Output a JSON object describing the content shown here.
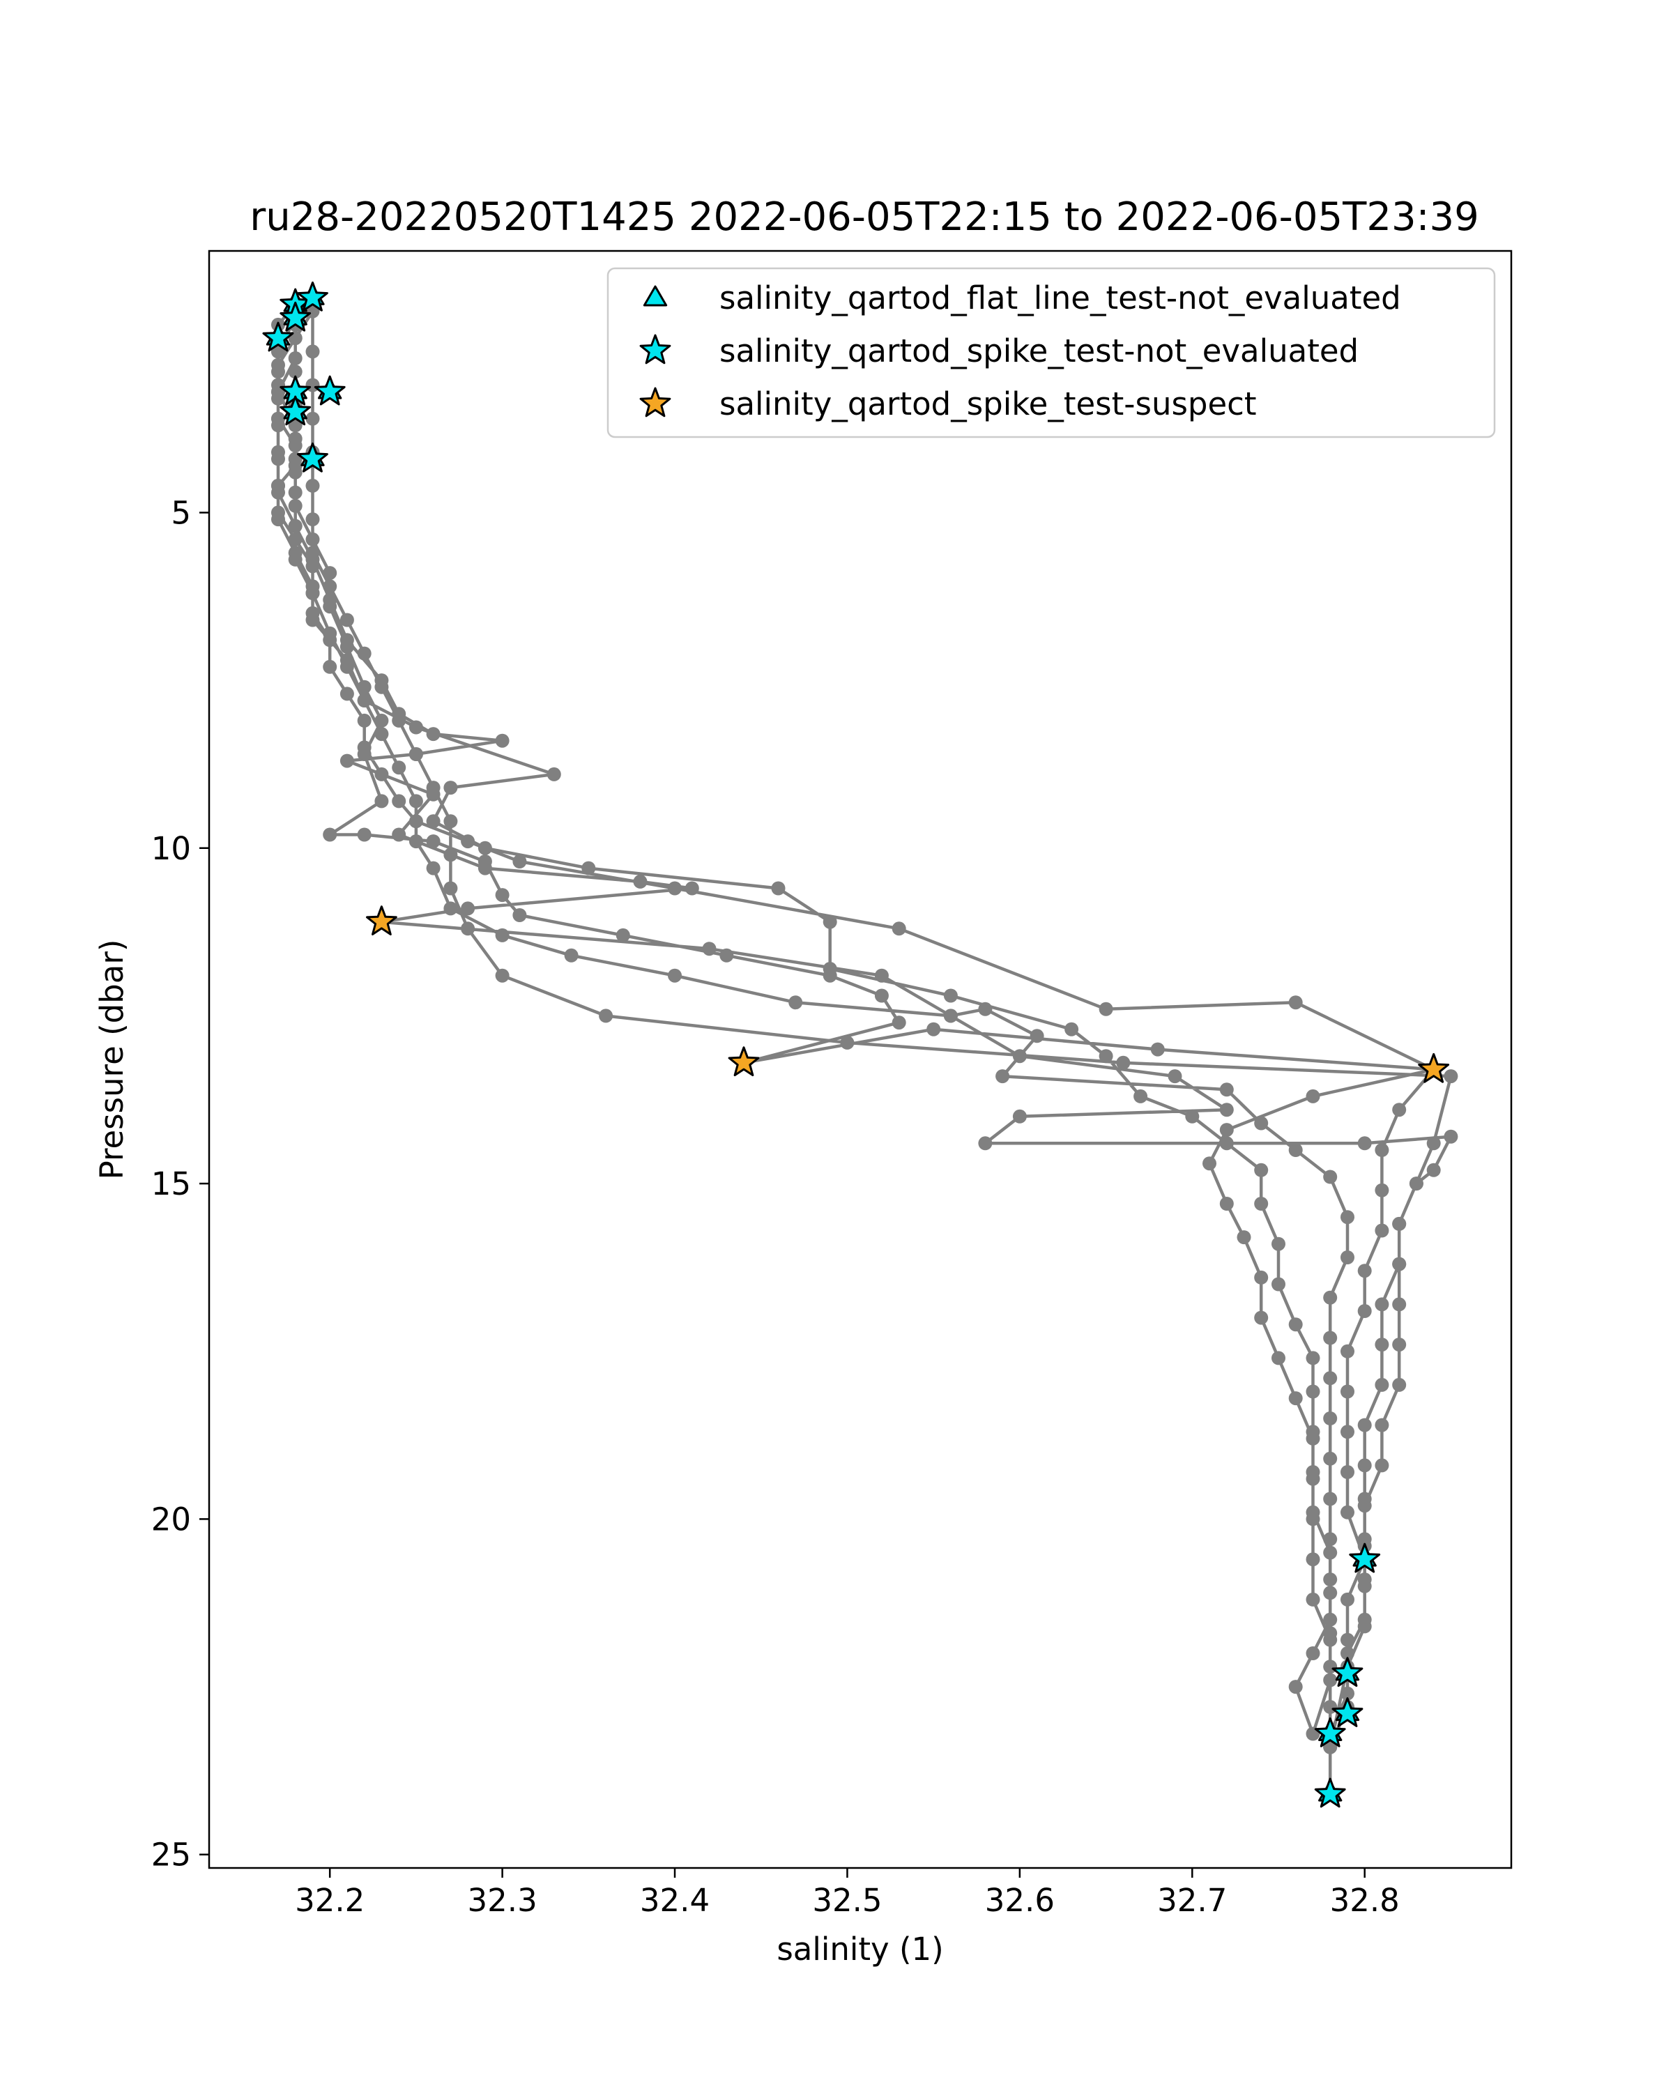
{
  "chart_data": {
    "type": "scatter",
    "title": "ru28-20220520T1425 2022-06-05T22:15 to 2022-06-05T23:39",
    "xlabel": "salinity (1)",
    "ylabel": "Pressure (dbar)",
    "xlim": [
      32.13,
      32.885
    ],
    "ylim": [
      25.2,
      1.1
    ],
    "y_inverted": true,
    "x_ticks": [
      32.2,
      32.3,
      32.4,
      32.5,
      32.6,
      32.7,
      32.8
    ],
    "x_tick_labels": [
      "32.2",
      "32.3",
      "32.4",
      "32.5",
      "32.6",
      "32.7",
      "32.8"
    ],
    "y_ticks": [
      5,
      10,
      15,
      20,
      25
    ],
    "y_tick_labels": [
      "5",
      "10",
      "15",
      "20",
      "25"
    ],
    "grid": false,
    "legend_position": "upper-right",
    "colors": {
      "profile": "#808080",
      "not_evaluated": "#00e5ee",
      "suspect": "#f5a623",
      "edge": "#000000"
    },
    "profile_series": {
      "style": "line-with-markers",
      "points": [
        [
          32.18,
          1.9
        ],
        [
          32.17,
          2.2
        ],
        [
          32.17,
          2.6
        ],
        [
          32.17,
          2.9
        ],
        [
          32.17,
          3.3
        ],
        [
          32.17,
          3.6
        ],
        [
          32.18,
          4.0
        ],
        [
          32.18,
          4.3
        ],
        [
          32.17,
          4.6
        ],
        [
          32.17,
          5.0
        ],
        [
          32.18,
          5.4
        ],
        [
          32.19,
          5.8
        ],
        [
          32.19,
          6.2
        ],
        [
          32.19,
          6.5
        ],
        [
          32.2,
          6.9
        ],
        [
          32.2,
          7.3
        ],
        [
          32.21,
          7.7
        ],
        [
          32.22,
          8.1
        ],
        [
          32.22,
          8.5
        ],
        [
          32.23,
          8.9
        ],
        [
          32.24,
          9.3
        ],
        [
          32.25,
          9.6
        ],
        [
          32.28,
          9.9
        ],
        [
          32.31,
          10.2
        ],
        [
          32.4,
          10.6
        ],
        [
          32.53,
          11.2
        ],
        [
          32.65,
          12.4
        ],
        [
          32.76,
          12.3
        ],
        [
          32.84,
          13.3
        ],
        [
          32.82,
          13.9
        ],
        [
          32.81,
          14.5
        ],
        [
          32.81,
          15.1
        ],
        [
          32.81,
          15.7
        ],
        [
          32.8,
          16.3
        ],
        [
          32.8,
          16.9
        ],
        [
          32.79,
          17.5
        ],
        [
          32.79,
          18.1
        ],
        [
          32.79,
          18.7
        ],
        [
          32.79,
          19.3
        ],
        [
          32.79,
          19.9
        ],
        [
          32.8,
          20.6
        ],
        [
          32.79,
          21.2
        ],
        [
          32.79,
          21.8
        ],
        [
          32.79,
          22.3
        ],
        [
          32.79,
          22.8
        ],
        [
          32.78,
          23.4
        ],
        [
          32.78,
          24.1
        ],
        [
          32.78,
          23.2
        ],
        [
          32.79,
          22.6
        ],
        [
          32.79,
          22.0
        ],
        [
          32.8,
          21.5
        ],
        [
          32.8,
          20.9
        ],
        [
          32.8,
          20.3
        ],
        [
          32.8,
          19.7
        ],
        [
          32.8,
          19.2
        ],
        [
          32.8,
          18.6
        ],
        [
          32.81,
          18.0
        ],
        [
          32.81,
          17.4
        ],
        [
          32.81,
          16.8
        ],
        [
          32.82,
          16.2
        ],
        [
          32.82,
          15.6
        ],
        [
          32.83,
          15.0
        ],
        [
          32.84,
          14.4
        ],
        [
          32.85,
          13.4
        ],
        [
          32.66,
          13.2
        ],
        [
          32.5,
          12.9
        ],
        [
          32.36,
          12.5
        ],
        [
          32.3,
          11.9
        ],
        [
          32.28,
          11.2
        ],
        [
          32.27,
          10.6
        ],
        [
          32.27,
          10.1
        ],
        [
          32.27,
          9.6
        ],
        [
          32.26,
          9.1
        ],
        [
          32.25,
          8.6
        ],
        [
          32.24,
          8.1
        ],
        [
          32.23,
          7.6
        ],
        [
          32.22,
          7.1
        ],
        [
          32.21,
          6.6
        ],
        [
          32.2,
          6.1
        ],
        [
          32.19,
          5.6
        ],
        [
          32.19,
          5.1
        ],
        [
          32.19,
          4.6
        ],
        [
          32.19,
          4.1
        ],
        [
          32.19,
          3.6
        ],
        [
          32.19,
          3.1
        ],
        [
          32.19,
          2.6
        ],
        [
          32.19,
          2.0
        ],
        [
          32.18,
          2.4
        ],
        [
          32.17,
          2.8
        ],
        [
          32.17,
          3.2
        ],
        [
          32.18,
          3.7
        ],
        [
          32.18,
          4.2
        ],
        [
          32.18,
          4.7
        ],
        [
          32.18,
          5.2
        ],
        [
          32.19,
          5.7
        ],
        [
          32.2,
          6.3
        ],
        [
          32.21,
          6.9
        ],
        [
          32.23,
          7.5
        ],
        [
          32.24,
          8.0
        ],
        [
          32.26,
          8.3
        ],
        [
          32.3,
          8.4
        ],
        [
          32.25,
          8.6
        ],
        [
          32.21,
          8.7
        ],
        [
          32.26,
          9.2
        ],
        [
          32.24,
          9.8
        ],
        [
          32.29,
          10.3
        ],
        [
          32.38,
          10.5
        ],
        [
          32.41,
          10.6
        ],
        [
          32.28,
          10.9
        ],
        [
          32.23,
          11.1
        ],
        [
          32.42,
          11.5
        ],
        [
          32.52,
          11.9
        ],
        [
          32.56,
          12.5
        ],
        [
          32.58,
          12.4
        ],
        [
          32.61,
          12.8
        ],
        [
          32.59,
          13.4
        ],
        [
          32.72,
          13.6
        ],
        [
          32.74,
          14.1
        ],
        [
          32.76,
          14.5
        ],
        [
          32.78,
          14.9
        ],
        [
          32.79,
          15.5
        ],
        [
          32.79,
          16.1
        ],
        [
          32.78,
          16.7
        ],
        [
          32.78,
          17.3
        ],
        [
          32.78,
          17.9
        ],
        [
          32.78,
          18.5
        ],
        [
          32.78,
          19.1
        ],
        [
          32.78,
          19.7
        ],
        [
          32.78,
          20.3
        ],
        [
          32.78,
          20.9
        ],
        [
          32.78,
          21.5
        ],
        [
          32.77,
          22.0
        ],
        [
          32.76,
          22.5
        ],
        [
          32.77,
          23.2
        ],
        [
          32.78,
          22.4
        ],
        [
          32.78,
          21.8
        ],
        [
          32.77,
          21.2
        ],
        [
          32.77,
          20.6
        ],
        [
          32.77,
          20.0
        ],
        [
          32.77,
          19.4
        ],
        [
          32.77,
          18.8
        ],
        [
          32.76,
          18.2
        ],
        [
          32.75,
          17.6
        ],
        [
          32.74,
          17.0
        ],
        [
          32.74,
          16.4
        ],
        [
          32.73,
          15.8
        ],
        [
          32.72,
          15.3
        ],
        [
          32.71,
          14.7
        ],
        [
          32.72,
          14.2
        ],
        [
          32.77,
          13.7
        ],
        [
          32.84,
          13.3
        ],
        [
          32.68,
          13.0
        ],
        [
          32.55,
          12.7
        ],
        [
          32.44,
          13.2
        ],
        [
          32.53,
          12.6
        ],
        [
          32.52,
          12.2
        ],
        [
          32.49,
          11.9
        ],
        [
          32.43,
          11.6
        ],
        [
          32.37,
          11.3
        ],
        [
          32.31,
          11.0
        ],
        [
          32.3,
          10.7
        ],
        [
          32.29,
          10.2
        ],
        [
          32.26,
          9.9
        ],
        [
          32.22,
          9.8
        ],
        [
          32.2,
          9.8
        ],
        [
          32.23,
          9.3
        ],
        [
          32.22,
          8.6
        ],
        [
          32.23,
          8.1
        ],
        [
          32.22,
          7.6
        ],
        [
          32.21,
          7.0
        ],
        [
          32.2,
          6.4
        ],
        [
          32.2,
          5.9
        ],
        [
          32.19,
          5.4
        ],
        [
          32.18,
          4.9
        ],
        [
          32.18,
          4.4
        ],
        [
          32.18,
          3.9
        ],
        [
          32.18,
          3.4
        ],
        [
          32.18,
          2.9
        ],
        [
          32.18,
          2.4
        ],
        [
          32.18,
          2.1
        ],
        [
          32.17,
          2.6
        ],
        [
          32.17,
          3.1
        ],
        [
          32.17,
          3.6
        ],
        [
          32.17,
          4.1
        ],
        [
          32.17,
          4.6
        ],
        [
          32.17,
          5.1
        ],
        [
          32.18,
          5.6
        ],
        [
          32.19,
          6.1
        ],
        [
          32.19,
          6.6
        ],
        [
          32.21,
          7.2
        ],
        [
          32.22,
          7.8
        ],
        [
          32.25,
          8.2
        ],
        [
          32.33,
          8.9
        ],
        [
          32.27,
          9.1
        ],
        [
          32.26,
          9.6
        ],
        [
          32.29,
          10.0
        ],
        [
          32.35,
          10.3
        ],
        [
          32.46,
          10.6
        ],
        [
          32.49,
          11.1
        ],
        [
          32.49,
          11.8
        ],
        [
          32.56,
          12.2
        ],
        [
          32.63,
          12.7
        ],
        [
          32.65,
          13.1
        ],
        [
          32.67,
          13.7
        ],
        [
          32.7,
          14.0
        ],
        [
          32.72,
          14.4
        ],
        [
          32.74,
          14.8
        ],
        [
          32.74,
          15.3
        ],
        [
          32.75,
          15.9
        ],
        [
          32.75,
          16.5
        ],
        [
          32.76,
          17.1
        ],
        [
          32.77,
          17.6
        ],
        [
          32.77,
          18.1
        ],
        [
          32.77,
          18.7
        ],
        [
          32.77,
          19.3
        ],
        [
          32.77,
          19.9
        ],
        [
          32.78,
          20.5
        ],
        [
          32.78,
          21.1
        ],
        [
          32.78,
          21.7
        ],
        [
          32.78,
          22.2
        ],
        [
          32.78,
          22.8
        ],
        [
          32.78,
          23.4
        ],
        [
          32.79,
          22.2
        ],
        [
          32.8,
          21.6
        ],
        [
          32.8,
          21.0
        ],
        [
          32.8,
          20.4
        ],
        [
          32.8,
          19.8
        ],
        [
          32.81,
          19.2
        ],
        [
          32.81,
          18.6
        ],
        [
          32.82,
          18.0
        ],
        [
          32.82,
          17.4
        ],
        [
          32.82,
          16.8
        ],
        [
          32.82,
          16.2
        ],
        [
          32.82,
          15.6
        ],
        [
          32.83,
          15.0
        ],
        [
          32.84,
          14.8
        ],
        [
          32.85,
          14.3
        ],
        [
          32.8,
          14.4
        ],
        [
          32.58,
          14.4
        ],
        [
          32.6,
          14.0
        ],
        [
          32.72,
          13.9
        ],
        [
          32.69,
          13.4
        ],
        [
          32.6,
          13.1
        ],
        [
          32.56,
          12.5
        ],
        [
          32.47,
          12.3
        ],
        [
          32.4,
          11.9
        ],
        [
          32.34,
          11.6
        ],
        [
          32.3,
          11.3
        ],
        [
          32.27,
          10.9
        ],
        [
          32.26,
          10.3
        ],
        [
          32.25,
          9.9
        ],
        [
          32.25,
          9.3
        ],
        [
          32.24,
          8.8
        ],
        [
          32.23,
          8.3
        ],
        [
          32.22,
          7.8
        ],
        [
          32.21,
          7.3
        ],
        [
          32.2,
          6.8
        ],
        [
          32.19,
          6.2
        ],
        [
          32.18,
          5.7
        ],
        [
          32.18,
          5.2
        ],
        [
          32.17,
          4.7
        ],
        [
          32.17,
          4.2
        ],
        [
          32.17,
          3.7
        ],
        [
          32.17,
          3.2
        ],
        [
          32.18,
          2.7
        ],
        [
          32.18,
          2.2
        ]
      ]
    },
    "series": [
      {
        "name": "salinity_qartod_flat_line_test-not_evaluated",
        "marker": "triangle",
        "color": "#00e5ee",
        "points": [
          [
            32.18,
            1.9
          ],
          [
            32.18,
            2.1
          ],
          [
            32.19,
            1.8
          ],
          [
            32.17,
            2.4
          ],
          [
            32.18,
            3.2
          ],
          [
            32.18,
            3.5
          ],
          [
            32.2,
            3.2
          ],
          [
            32.19,
            4.2
          ],
          [
            32.8,
            20.6
          ],
          [
            32.79,
            22.3
          ],
          [
            32.79,
            22.9
          ],
          [
            32.78,
            23.2
          ],
          [
            32.78,
            24.1
          ]
        ]
      },
      {
        "name": "salinity_qartod_spike_test-not_evaluated",
        "marker": "star",
        "color": "#00e5ee",
        "points": [
          [
            32.18,
            1.9
          ],
          [
            32.18,
            2.1
          ],
          [
            32.19,
            1.8
          ],
          [
            32.17,
            2.4
          ],
          [
            32.18,
            3.2
          ],
          [
            32.18,
            3.5
          ],
          [
            32.2,
            3.2
          ],
          [
            32.19,
            4.2
          ],
          [
            32.8,
            20.6
          ],
          [
            32.79,
            22.3
          ],
          [
            32.79,
            22.9
          ],
          [
            32.78,
            23.2
          ],
          [
            32.78,
            24.1
          ]
        ]
      },
      {
        "name": "salinity_qartod_spike_test-suspect",
        "marker": "star",
        "color": "#f5a623",
        "points": [
          [
            32.23,
            11.1
          ],
          [
            32.44,
            13.2
          ],
          [
            32.84,
            13.3
          ]
        ]
      }
    ]
  }
}
